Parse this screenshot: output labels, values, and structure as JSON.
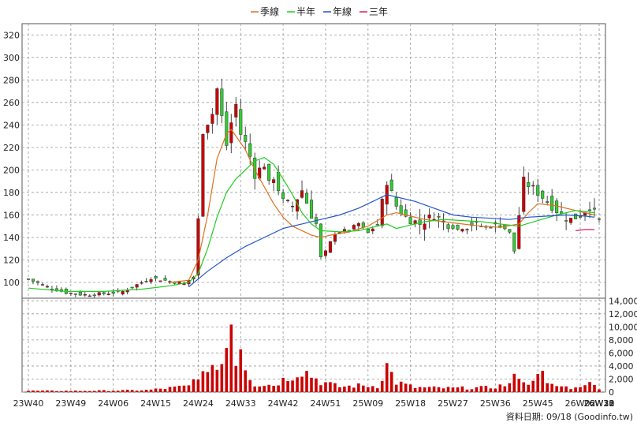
{
  "chart_data": {
    "type": "candlestick",
    "legend": {
      "placement": "top-center",
      "items": [
        {
          "label": "季線",
          "color": "#e07020"
        },
        {
          "label": "半年",
          "color": "#22cc22"
        },
        {
          "label": "年線",
          "color": "#2255cc"
        },
        {
          "label": "三年",
          "color": "#cc2266"
        }
      ]
    },
    "price_axis": {
      "min": 86,
      "max": 330,
      "ticks": [
        100,
        120,
        140,
        160,
        180,
        200,
        220,
        240,
        260,
        280,
        300,
        320
      ]
    },
    "volume_axis": {
      "min": 0,
      "max": 14400,
      "ticks": [
        0,
        2000,
        4000,
        6000,
        8000,
        10000,
        12000,
        14000
      ],
      "tick_labels": [
        "0",
        "2,000",
        "4,000",
        "6,000",
        "8,000",
        "10,000",
        "12,000",
        "14,000"
      ]
    },
    "x_ticks": [
      "23W40",
      "23W49",
      "24W06",
      "24W15",
      "24W24",
      "24W33",
      "24W42",
      "24W51",
      "25W09",
      "25W18",
      "25W27",
      "25W36",
      "25W45",
      "26W02",
      "26W12",
      "26W21",
      "26W30",
      "26W38"
    ],
    "tick_interval_weeks": 9,
    "up_color": "#cc0000",
    "down_color": "#33cc33",
    "volume_color": "#cc0000",
    "grid": true,
    "source": "資料日期: 09/18 (Goodinfo.tw)",
    "price_anchors": [
      [
        0,
        103
      ],
      [
        4,
        96
      ],
      [
        8,
        91
      ],
      [
        12,
        89
      ],
      [
        16,
        90
      ],
      [
        20,
        92
      ],
      [
        23,
        98
      ],
      [
        26,
        104
      ],
      [
        30,
        101
      ],
      [
        33,
        99
      ],
      [
        35,
        105
      ],
      [
        36,
        155
      ],
      [
        37,
        235
      ],
      [
        39,
        250
      ],
      [
        40,
        272
      ],
      [
        42,
        222
      ],
      [
        43,
        242
      ],
      [
        44,
        258
      ],
      [
        45,
        232
      ],
      [
        46,
        224
      ],
      [
        47,
        212
      ],
      [
        48,
        196
      ],
      [
        50,
        205
      ],
      [
        51,
        187
      ],
      [
        52,
        194
      ],
      [
        54,
        172
      ],
      [
        56,
        168
      ],
      [
        58,
        182
      ],
      [
        60,
        160
      ],
      [
        61,
        152
      ],
      [
        62,
        122
      ],
      [
        63,
        127
      ],
      [
        65,
        144
      ],
      [
        68,
        147
      ],
      [
        70,
        152
      ],
      [
        72,
        144
      ],
      [
        74,
        152
      ],
      [
        76,
        190
      ],
      [
        78,
        168
      ],
      [
        80,
        158
      ],
      [
        83,
        152
      ],
      [
        86,
        160
      ],
      [
        88,
        154
      ],
      [
        91,
        147
      ],
      [
        94,
        152
      ],
      [
        97,
        149
      ],
      [
        100,
        152
      ],
      [
        102,
        144
      ],
      [
        103,
        128
      ],
      [
        104,
        160
      ],
      [
        105,
        190
      ],
      [
        108,
        180
      ],
      [
        110,
        172
      ],
      [
        113,
        160
      ],
      [
        115,
        156
      ],
      [
        117,
        160
      ],
      [
        119,
        168
      ],
      [
        121,
        155
      ]
    ],
    "volume_anchors": [
      [
        0,
        200
      ],
      [
        10,
        180
      ],
      [
        20,
        250
      ],
      [
        25,
        300
      ],
      [
        34,
        900
      ],
      [
        35,
        1800
      ],
      [
        36,
        3000
      ],
      [
        38,
        2200
      ],
      [
        39,
        6000
      ],
      [
        40,
        3500
      ],
      [
        41,
        4500
      ],
      [
        42,
        7500
      ],
      [
        43,
        14400
      ],
      [
        44,
        4500
      ],
      [
        45,
        8200
      ],
      [
        46,
        4200
      ],
      [
        47,
        2500
      ],
      [
        48,
        1200
      ],
      [
        52,
        1100
      ],
      [
        58,
        3500
      ],
      [
        62,
        1600
      ],
      [
        66,
        800
      ],
      [
        70,
        1000
      ],
      [
        74,
        900
      ],
      [
        76,
        4000
      ],
      [
        78,
        1500
      ],
      [
        82,
        700
      ],
      [
        90,
        600
      ],
      [
        98,
        700
      ],
      [
        102,
        1200
      ],
      [
        104,
        3000
      ],
      [
        106,
        900
      ],
      [
        108,
        4000
      ],
      [
        110,
        1100
      ],
      [
        116,
        600
      ],
      [
        118,
        1500
      ],
      [
        121,
        700
      ]
    ],
    "series_quarter": [
      [
        30,
        100
      ],
      [
        34,
        102
      ],
      [
        36,
        120
      ],
      [
        38,
        160
      ],
      [
        40,
        210
      ],
      [
        42,
        232
      ],
      [
        43,
        236
      ],
      [
        44,
        230
      ],
      [
        46,
        218
      ],
      [
        48,
        200
      ],
      [
        50,
        185
      ],
      [
        52,
        170
      ],
      [
        54,
        158
      ],
      [
        56,
        150
      ],
      [
        60,
        142
      ],
      [
        62,
        140
      ],
      [
        64,
        142
      ],
      [
        68,
        145
      ],
      [
        72,
        150
      ],
      [
        76,
        160
      ],
      [
        78,
        162
      ],
      [
        80,
        160
      ],
      [
        84,
        156
      ],
      [
        88,
        154
      ],
      [
        92,
        152
      ],
      [
        96,
        150
      ],
      [
        100,
        149
      ],
      [
        104,
        152
      ],
      [
        106,
        162
      ],
      [
        108,
        170
      ],
      [
        112,
        168
      ],
      [
        116,
        164
      ],
      [
        120,
        160
      ]
    ],
    "series_half": [
      [
        0,
        95
      ],
      [
        8,
        92
      ],
      [
        16,
        92
      ],
      [
        24,
        94
      ],
      [
        30,
        97
      ],
      [
        34,
        100
      ],
      [
        36,
        108
      ],
      [
        38,
        130
      ],
      [
        40,
        158
      ],
      [
        42,
        180
      ],
      [
        44,
        192
      ],
      [
        46,
        200
      ],
      [
        48,
        208
      ],
      [
        50,
        211
      ],
      [
        52,
        205
      ],
      [
        54,
        192
      ],
      [
        56,
        178
      ],
      [
        58,
        162
      ],
      [
        60,
        152
      ],
      [
        62,
        146
      ],
      [
        66,
        145
      ],
      [
        70,
        146
      ],
      [
        74,
        150
      ],
      [
        76,
        152
      ],
      [
        78,
        148
      ],
      [
        80,
        150
      ],
      [
        84,
        154
      ],
      [
        88,
        156
      ],
      [
        92,
        155
      ],
      [
        96,
        154
      ],
      [
        100,
        152
      ],
      [
        104,
        150
      ],
      [
        108,
        155
      ],
      [
        112,
        160
      ],
      [
        116,
        164
      ],
      [
        120,
        162
      ]
    ],
    "series_year": [
      [
        34,
        96
      ],
      [
        38,
        110
      ],
      [
        42,
        122
      ],
      [
        46,
        132
      ],
      [
        50,
        140
      ],
      [
        54,
        148
      ],
      [
        58,
        152
      ],
      [
        62,
        156
      ],
      [
        66,
        160
      ],
      [
        70,
        166
      ],
      [
        74,
        174
      ],
      [
        76,
        178
      ],
      [
        78,
        176
      ],
      [
        82,
        172
      ],
      [
        86,
        166
      ],
      [
        90,
        160
      ],
      [
        94,
        158
      ],
      [
        98,
        157
      ],
      [
        102,
        156
      ],
      [
        106,
        158
      ],
      [
        110,
        159
      ],
      [
        114,
        160
      ],
      [
        118,
        159
      ],
      [
        120,
        158
      ]
    ],
    "series_three_year": [
      [
        116,
        146
      ],
      [
        118,
        147
      ],
      [
        120,
        147
      ]
    ]
  }
}
